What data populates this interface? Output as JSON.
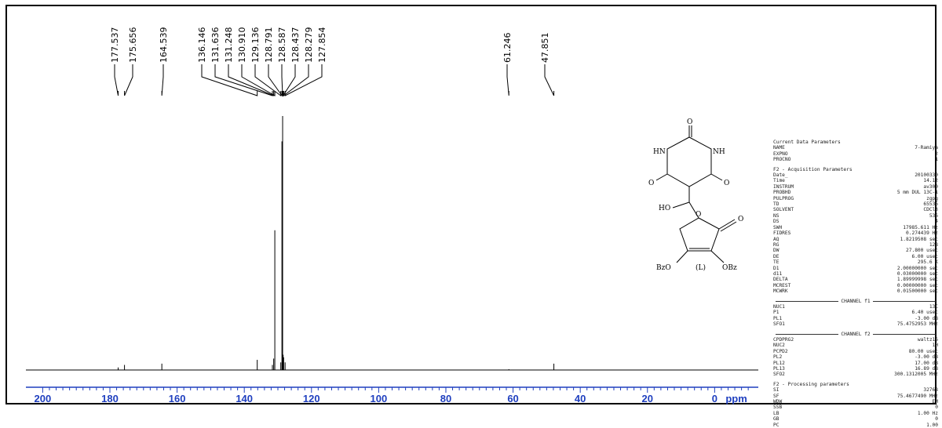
{
  "chart_data": {
    "type": "line",
    "x_axis": {
      "reversed": true,
      "range": [
        205,
        -13
      ],
      "ticks": [
        200,
        180,
        160,
        140,
        120,
        100,
        80,
        60,
        40,
        20,
        0
      ],
      "unit_label": "ppm",
      "axis_color": "#1f3fbf"
    },
    "peak_labels": [
      "177.537",
      "175.656",
      "164.539",
      "136.146",
      "131.636",
      "131.248",
      "130.910",
      "129.136",
      "128.791",
      "128.587",
      "128.437",
      "128.279",
      "127.854",
      "61.246",
      "47.851"
    ],
    "peaks": [
      {
        "ppm": 177.537,
        "height": 0.01
      },
      {
        "ppm": 175.656,
        "height": 0.02
      },
      {
        "ppm": 164.539,
        "height": 0.025
      },
      {
        "ppm": 136.146,
        "height": 0.04
      },
      {
        "ppm": 131.636,
        "height": 0.02
      },
      {
        "ppm": 131.248,
        "height": 0.045
      },
      {
        "ppm": 130.91,
        "height": 0.55
      },
      {
        "ppm": 129.136,
        "height": 0.03
      },
      {
        "ppm": 128.791,
        "height": 0.9
      },
      {
        "ppm": 128.587,
        "height": 1.0
      },
      {
        "ppm": 128.437,
        "height": 0.06
      },
      {
        "ppm": 128.279,
        "height": 0.05
      },
      {
        "ppm": 127.854,
        "height": 0.03
      },
      {
        "ppm": 61.246,
        "height": 0.003
      },
      {
        "ppm": 47.851,
        "height": 0.025
      }
    ],
    "structure_labels": {
      "hn": "HN",
      "nh": "NH",
      "o_top": "O",
      "o_left": "O",
      "o_right": "O",
      "ho": "HO",
      "o_ring": "O",
      "o_lactone": "O",
      "obz_left": "BzO",
      "obz_right": "OBz",
      "compound": "(L)"
    }
  },
  "params": {
    "current_title": "Current Data Parameters",
    "current": [
      [
        "NAME",
        "7-Ramiya"
      ],
      [
        "EXPNO",
        "2"
      ],
      [
        "PROCNO",
        "1"
      ]
    ],
    "acq_title": "F2 - Acquisition Parameters",
    "acq": [
      [
        "Date_",
        "20100330"
      ],
      [
        "Time",
        "14.12"
      ],
      [
        "INSTRUM",
        "av300"
      ],
      [
        "PROBHD",
        "5 mm DUL 13C-1"
      ],
      [
        "PULPROG",
        "zgpg"
      ],
      [
        "TD",
        "65536"
      ],
      [
        "SOLVENT",
        "CDCl3"
      ],
      [
        "NS",
        "536"
      ],
      [
        "DS",
        "4"
      ],
      [
        "SWH",
        "17985.611 Hz"
      ],
      [
        "FIDRES",
        "0.274439 Hz"
      ],
      [
        "AQ",
        "1.8219508 sec"
      ],
      [
        "RG",
        "128"
      ],
      [
        "DW",
        "27.800 usec"
      ],
      [
        "DE",
        "6.00 usec"
      ],
      [
        "TE",
        "295.6 K"
      ],
      [
        "D1",
        "2.00000000 sec"
      ],
      [
        "d11",
        "0.03000000 sec"
      ],
      [
        "DELTA",
        "1.89999998 sec"
      ],
      [
        "MCREST",
        "0.00000000 sec"
      ],
      [
        "MCWRK",
        "0.01500000 sec"
      ]
    ],
    "ch1_title": "CHANNEL f1",
    "ch1": [
      [
        "NUC1",
        "13C"
      ],
      [
        "P1",
        "6.40 usec"
      ],
      [
        "PL1",
        "-3.00 dB"
      ],
      [
        "SFO1",
        "75.4752953 MHz"
      ]
    ],
    "ch2_title": "CHANNEL f2",
    "ch2": [
      [
        "CPDPRG2",
        "waltz16"
      ],
      [
        "NUC2",
        "1H"
      ],
      [
        "PCPD2",
        "80.00 usec"
      ],
      [
        "PL2",
        "-3.00 dB"
      ],
      [
        "PL12",
        "17.00 dB"
      ],
      [
        "PL13",
        "16.89 dB"
      ],
      [
        "SFO2",
        "300.1312005 MHz"
      ]
    ],
    "proc_title": "F2 - Processing parameters",
    "proc": [
      [
        "SI",
        "32768"
      ],
      [
        "SF",
        "75.4677490 MHz"
      ],
      [
        "WDW",
        "EM"
      ],
      [
        "SSB",
        "0"
      ],
      [
        "LB",
        "1.00 Hz"
      ],
      [
        "GB",
        "0"
      ],
      [
        "PC",
        "1.00"
      ]
    ]
  }
}
